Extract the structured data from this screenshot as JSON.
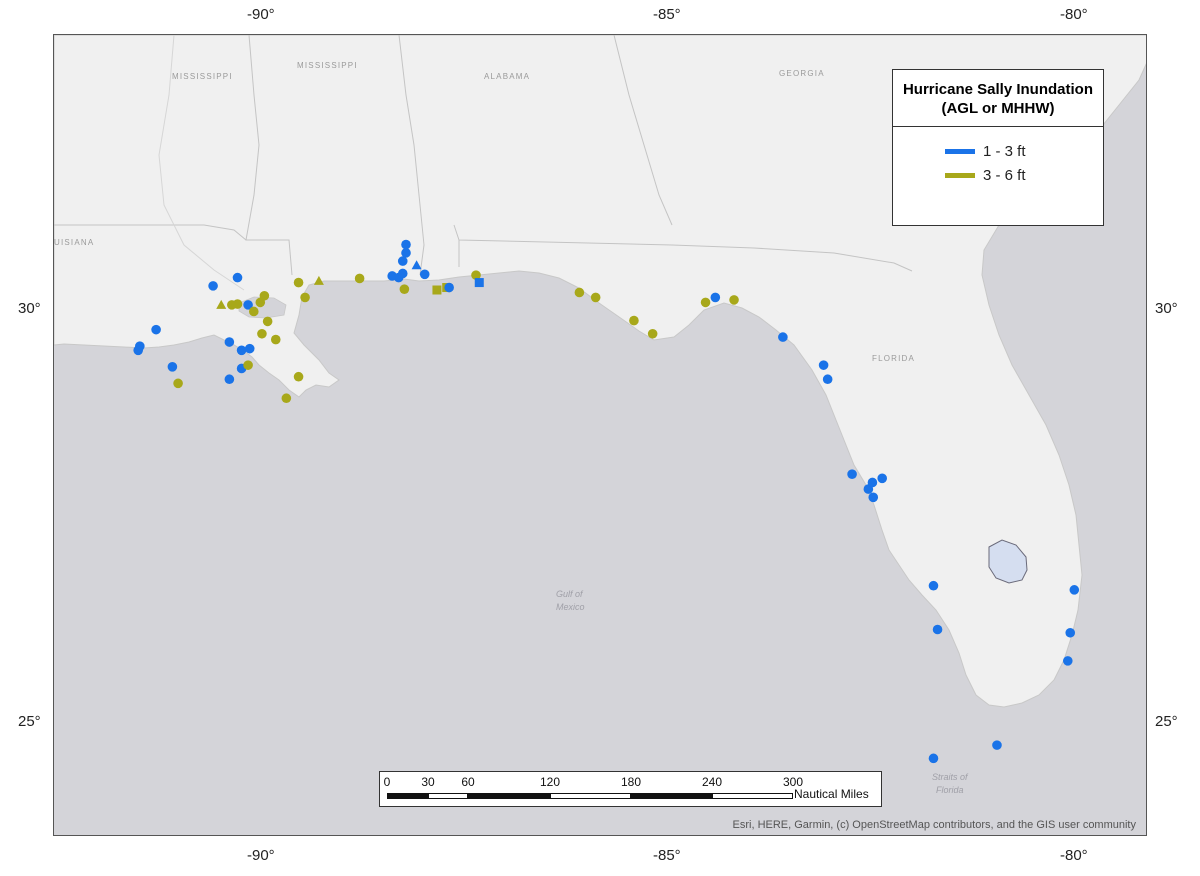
{
  "axes": {
    "top_ticks": [
      "-90°",
      "-85°",
      "-80°"
    ],
    "bottom_ticks": [
      "-90°",
      "-85°",
      "-80°"
    ],
    "left_ticks": [
      "30°",
      "25°"
    ],
    "right_ticks": [
      "30°",
      "25°"
    ]
  },
  "legend": {
    "title": "Hurricane Sally Inundation (AGL or MHHW)",
    "items": [
      {
        "label": "1 - 3 ft",
        "color": "#1a73e8"
      },
      {
        "label": "3 - 6 ft",
        "color": "#a8a81a"
      }
    ]
  },
  "place_labels": {
    "mississippi_1": "MISSISSIPPI",
    "mississippi_2": "MISSISSIPPI",
    "alabama": "ALABAMA",
    "georgia": "GEORGIA",
    "louisiana": "UISIANA",
    "florida": "FLORIDA",
    "gulf": "Gulf of Mexico",
    "straits": "Straits of Florida"
  },
  "scale_bar": {
    "ticks": [
      "0",
      "30",
      "60",
      "120",
      "180",
      "240",
      "300"
    ],
    "unit": "Nautical Miles"
  },
  "credit": "Esri, HERE, Garmin, (c) OpenStreetMap contributors, and the GIS user community",
  "stations": [
    {
      "lon": -91.55,
      "lat": 29.55,
      "level": "1-3"
    },
    {
      "lon": -91.35,
      "lat": 29.75,
      "level": "1-3"
    },
    {
      "lon": -91.57,
      "lat": 29.5,
      "level": "1-3"
    },
    {
      "lon": -91.15,
      "lat": 29.3,
      "level": "1-3"
    },
    {
      "lon": -91.08,
      "lat": 29.1,
      "level": "3-6"
    },
    {
      "lon": -90.45,
      "lat": 29.6,
      "level": "1-3"
    },
    {
      "lon": -90.3,
      "lat": 29.5,
      "level": "1-3"
    },
    {
      "lon": -90.2,
      "lat": 29.52,
      "level": "1-3"
    },
    {
      "lon": -90.3,
      "lat": 29.28,
      "level": "1-3"
    },
    {
      "lon": -90.22,
      "lat": 29.32,
      "level": "3-6"
    },
    {
      "lon": -90.45,
      "lat": 29.15,
      "level": "1-3"
    },
    {
      "lon": -90.65,
      "lat": 30.28,
      "level": "1-3"
    },
    {
      "lon": -90.35,
      "lat": 30.38,
      "level": "1-3"
    },
    {
      "lon": -90.55,
      "lat": 30.05,
      "level": "3-6",
      "shape": "triangle"
    },
    {
      "lon": -90.42,
      "lat": 30.05,
      "level": "3-6"
    },
    {
      "lon": -90.35,
      "lat": 30.06,
      "level": "3-6"
    },
    {
      "lon": -90.22,
      "lat": 30.05,
      "level": "1-3"
    },
    {
      "lon": -90.15,
      "lat": 29.97,
      "level": "3-6"
    },
    {
      "lon": -90.07,
      "lat": 30.08,
      "level": "3-6"
    },
    {
      "lon": -90.02,
      "lat": 30.16,
      "level": "3-6"
    },
    {
      "lon": -89.98,
      "lat": 29.85,
      "level": "3-6"
    },
    {
      "lon": -90.05,
      "lat": 29.7,
      "level": "3-6"
    },
    {
      "lon": -89.88,
      "lat": 29.63,
      "level": "3-6"
    },
    {
      "lon": -89.6,
      "lat": 29.18,
      "level": "3-6"
    },
    {
      "lon": -89.75,
      "lat": 28.92,
      "level": "3-6"
    },
    {
      "lon": -89.52,
      "lat": 30.14,
      "level": "3-6"
    },
    {
      "lon": -89.6,
      "lat": 30.32,
      "level": "3-6"
    },
    {
      "lon": -89.35,
      "lat": 30.34,
      "level": "3-6",
      "shape": "triangle"
    },
    {
      "lon": -88.85,
      "lat": 30.37,
      "level": "3-6"
    },
    {
      "lon": -88.45,
      "lat": 30.4,
      "level": "1-3"
    },
    {
      "lon": -88.37,
      "lat": 30.38,
      "level": "1-3"
    },
    {
      "lon": -88.32,
      "lat": 30.43,
      "level": "1-3"
    },
    {
      "lon": -88.32,
      "lat": 30.58,
      "level": "1-3"
    },
    {
      "lon": -88.28,
      "lat": 30.68,
      "level": "1-3"
    },
    {
      "lon": -88.28,
      "lat": 30.78,
      "level": "1-3"
    },
    {
      "lon": -88.15,
      "lat": 30.53,
      "level": "1-3",
      "shape": "triangle"
    },
    {
      "lon": -88.05,
      "lat": 30.42,
      "level": "1-3"
    },
    {
      "lon": -88.3,
      "lat": 30.24,
      "level": "3-6"
    },
    {
      "lon": -87.9,
      "lat": 30.23,
      "level": "3-6",
      "shape": "square"
    },
    {
      "lon": -87.78,
      "lat": 30.26,
      "level": "3-6",
      "shape": "square"
    },
    {
      "lon": -87.75,
      "lat": 30.26,
      "level": "1-3"
    },
    {
      "lon": -87.42,
      "lat": 30.41,
      "level": "3-6"
    },
    {
      "lon": -87.38,
      "lat": 30.32,
      "level": "1-3",
      "shape": "square"
    },
    {
      "lon": -86.15,
      "lat": 30.2,
      "level": "3-6"
    },
    {
      "lon": -85.95,
      "lat": 30.14,
      "level": "3-6"
    },
    {
      "lon": -85.48,
      "lat": 29.86,
      "level": "3-6"
    },
    {
      "lon": -85.25,
      "lat": 29.7,
      "level": "3-6"
    },
    {
      "lon": -84.6,
      "lat": 30.08,
      "level": "3-6"
    },
    {
      "lon": -84.48,
      "lat": 30.14,
      "level": "1-3"
    },
    {
      "lon": -84.25,
      "lat": 30.11,
      "level": "3-6"
    },
    {
      "lon": -83.65,
      "lat": 29.66,
      "level": "1-3"
    },
    {
      "lon": -83.15,
      "lat": 29.32,
      "level": "1-3"
    },
    {
      "lon": -83.1,
      "lat": 29.15,
      "level": "1-3"
    },
    {
      "lon": -82.8,
      "lat": 28.0,
      "level": "1-3"
    },
    {
      "lon": -82.6,
      "lat": 27.82,
      "level": "1-3"
    },
    {
      "lon": -82.55,
      "lat": 27.9,
      "level": "1-3"
    },
    {
      "lon": -82.54,
      "lat": 27.72,
      "level": "1-3"
    },
    {
      "lon": -82.43,
      "lat": 27.95,
      "level": "1-3"
    },
    {
      "lon": -81.8,
      "lat": 26.65,
      "level": "1-3"
    },
    {
      "lon": -81.75,
      "lat": 26.12,
      "level": "1-3"
    },
    {
      "lon": -80.07,
      "lat": 26.6,
      "level": "1-3"
    },
    {
      "lon": -80.12,
      "lat": 26.08,
      "level": "1-3"
    },
    {
      "lon": -80.15,
      "lat": 25.74,
      "level": "1-3"
    },
    {
      "lon": -81.8,
      "lat": 24.56,
      "level": "1-3"
    },
    {
      "lon": -81.02,
      "lat": 24.72,
      "level": "1-3"
    }
  ]
}
